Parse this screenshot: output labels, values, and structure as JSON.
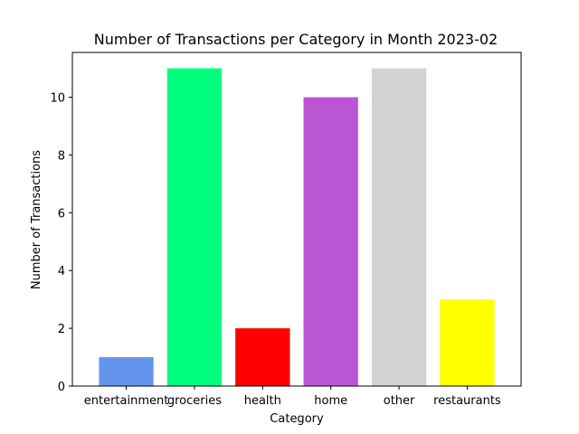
{
  "chart_data": {
    "type": "bar",
    "title": "Number of Transactions per Category in Month 2023-02",
    "xlabel": "Category",
    "ylabel": "Number of Transactions",
    "categories": [
      "entertainment",
      "groceries",
      "health",
      "home",
      "other",
      "restaurants"
    ],
    "values": [
      1,
      11,
      2,
      10,
      11,
      3
    ],
    "colors": [
      "#6495ed",
      "#00ff7f",
      "#ff0000",
      "#ba55d3",
      "#d3d3d3",
      "#ffff00"
    ],
    "ylim": [
      0,
      11.55
    ],
    "yticks": [
      0,
      2,
      4,
      6,
      8,
      10
    ],
    "grid": false,
    "legend": "none"
  }
}
